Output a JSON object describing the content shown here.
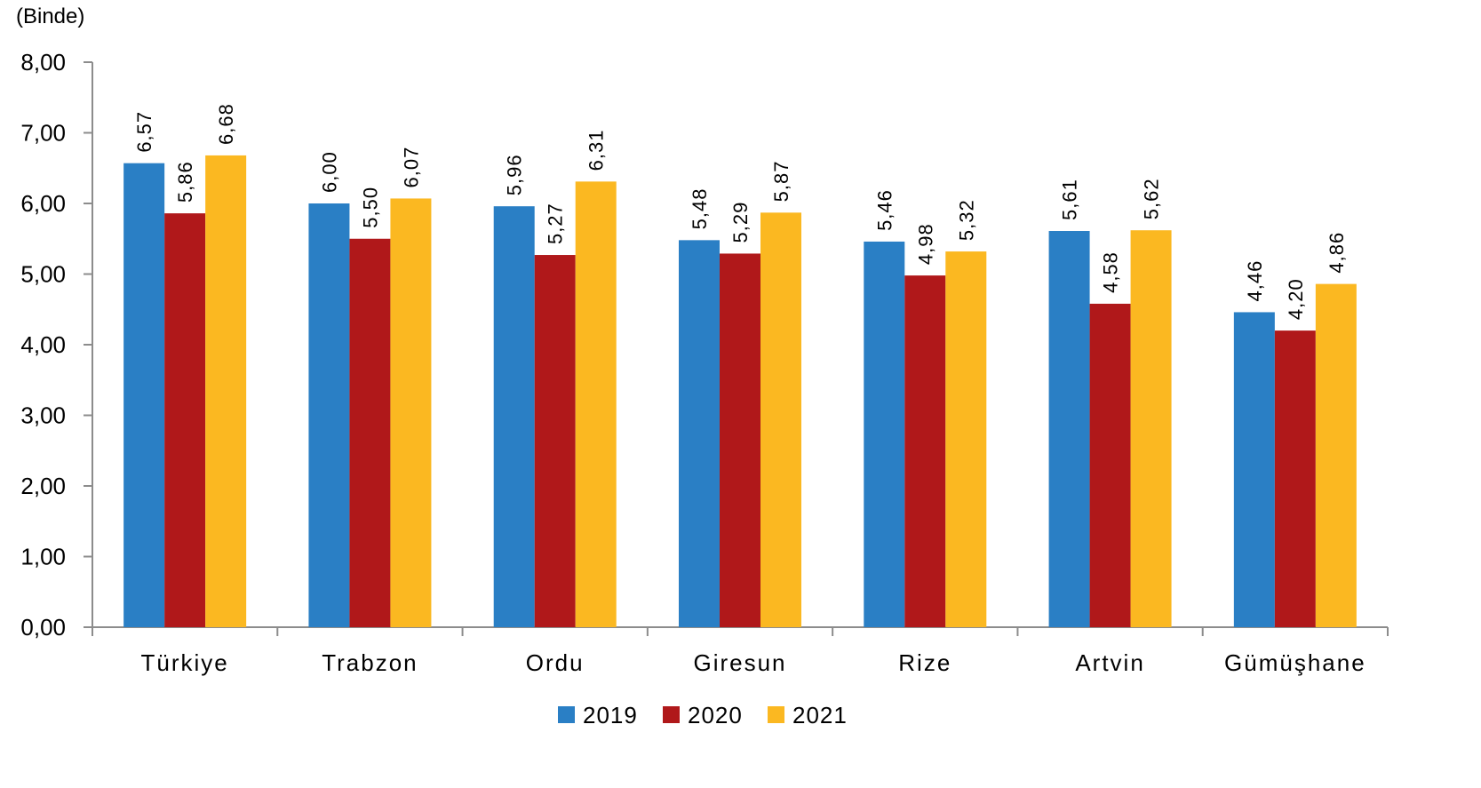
{
  "chart_data": {
    "type": "bar",
    "title": "",
    "unit_label": "(Binde)",
    "xlabel": "",
    "ylabel": "",
    "ylim": [
      0,
      8
    ],
    "yticks": [
      "0,00",
      "1,00",
      "2,00",
      "3,00",
      "4,00",
      "5,00",
      "6,00",
      "7,00",
      "8,00"
    ],
    "grid": false,
    "legend_position": "bottom",
    "categories": [
      "Türkiye",
      "Trabzon",
      "Ordu",
      "Giresun",
      "Rize",
      "Artvin",
      "Gümüşhane"
    ],
    "series": [
      {
        "name": "2019",
        "color": "#2a7fc5",
        "values": [
          6.57,
          6.0,
          5.96,
          5.48,
          5.46,
          5.61,
          4.46
        ],
        "labels": [
          "6,57",
          "6,00",
          "5,96",
          "5,48",
          "5,46",
          "5,61",
          "4,46"
        ]
      },
      {
        "name": "2020",
        "color": "#b0181a",
        "values": [
          5.86,
          5.5,
          5.27,
          5.29,
          4.98,
          4.58,
          4.2
        ],
        "labels": [
          "5,86",
          "5,50",
          "5,27",
          "5,29",
          "4,98",
          "4,58",
          "4,20"
        ]
      },
      {
        "name": "2021",
        "color": "#fbb821",
        "values": [
          6.68,
          6.07,
          6.31,
          5.87,
          5.32,
          5.62,
          4.86
        ],
        "labels": [
          "6,68",
          "6,07",
          "6,31",
          "5,87",
          "5,32",
          "5,62",
          "4,86"
        ]
      }
    ]
  }
}
